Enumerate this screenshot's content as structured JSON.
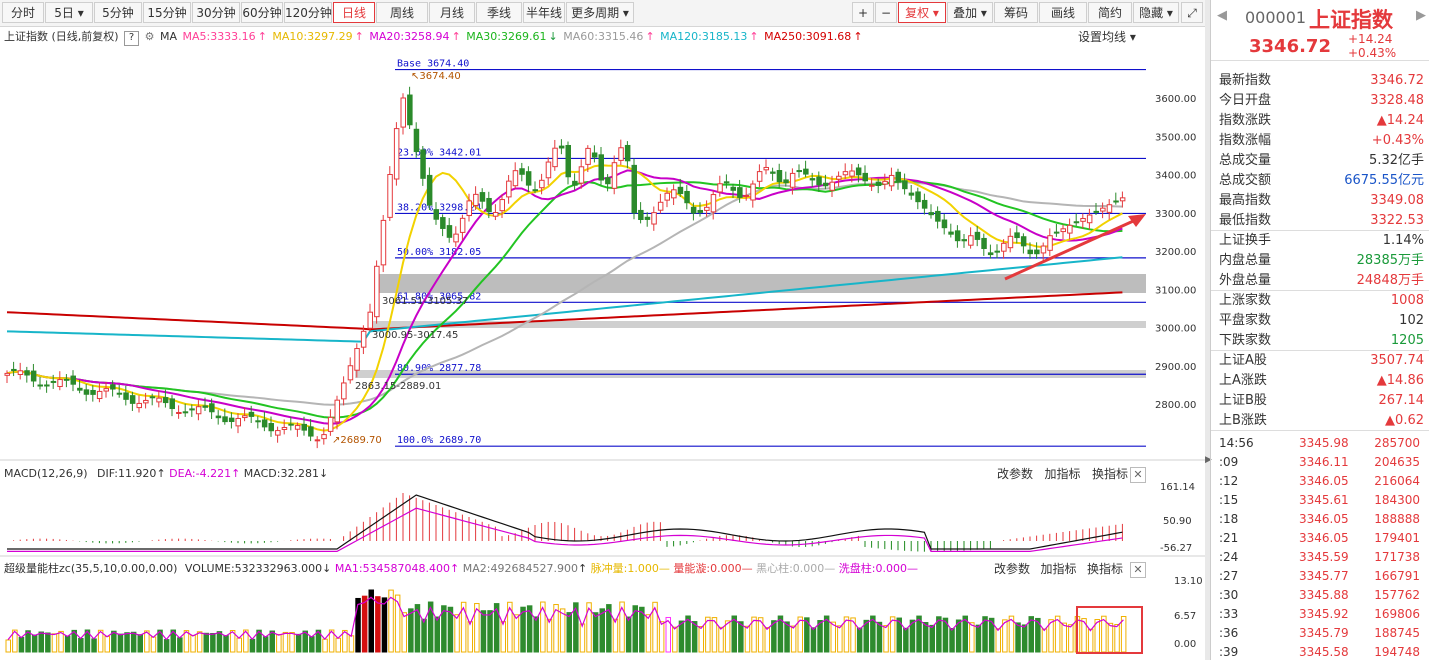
{
  "toolbar": {
    "periods": [
      "分时",
      "5日",
      "5分钟",
      "15分钟",
      "30分钟",
      "60分钟",
      "120分钟",
      "日线",
      "周线",
      "月线",
      "季线",
      "半年线",
      "更多周期"
    ],
    "active": "日线",
    "right_tools": [
      "+",
      "−",
      "复权",
      "叠加",
      "筹码",
      "画线",
      "简约",
      "隐藏"
    ],
    "fuquan_active": "复权"
  },
  "chart_header": {
    "title": "上证指数 (日线,前复权)",
    "ma_label": "MA",
    "ma5": "MA5:3333.16",
    "ma10": "MA10:3297.29",
    "ma20": "MA20:3258.94",
    "ma30": "MA30:3269.61",
    "ma60": "MA60:3315.46",
    "ma120": "MA120:3185.13",
    "ma250": "MA250:3091.68",
    "settings": "设置均线"
  },
  "price_axis": [
    "3600.00",
    "3500.00",
    "3400.00",
    "3300.00",
    "3200.00",
    "3100.00",
    "3000.00",
    "2900.00",
    "2800.00"
  ],
  "fib_labels": [
    "Base 3674.40",
    "23.60% 3442.01",
    "38.20% 3298.24",
    "50.00% 3182.05",
    "61.80% 3065.82",
    "80.90% 2877.78",
    "100.0% 2689.70"
  ],
  "annotations": {
    "high": "3674.40",
    "low": "2689.70",
    "gap1": "3000.95-3017.45",
    "gap2": "2863.15-2889.01",
    "gap3": "3061.51-3105.37"
  },
  "macd": {
    "title": "MACD(12,26,9)",
    "dif": "DIF:11.920",
    "dea": "DEA:-4.221",
    "macd": "MACD:32.281",
    "axis": [
      "161.14",
      "50.90",
      "-56.27"
    ]
  },
  "volume": {
    "title": "超级量能柱zc(35,5,10,0.00,0.00)",
    "vol": "VOLUME:532332963.000",
    "ma1": "MA1:534587048.400",
    "ma2": "MA2:492684527.900",
    "pulse": "脉冲量:1.000",
    "spin": "量能漩:0.000",
    "black": "黑心柱:0.000",
    "wash": "洗盘柱:0.000",
    "axis": [
      "13.10",
      "6.57",
      "0.00"
    ]
  },
  "panel_buttons": [
    "改参数",
    "加指标",
    "换指标"
  ],
  "quote": {
    "code": "000001",
    "name": "上证指数",
    "price": "3346.72",
    "change": "+14.24",
    "pct": "+0.43%"
  },
  "stats": [
    {
      "k": "最新指数",
      "v": "3346.72",
      "c": "red"
    },
    {
      "k": "今日开盘",
      "v": "3328.48",
      "c": "red"
    },
    {
      "k": "指数涨跌",
      "v": "▲14.24",
      "c": "red"
    },
    {
      "k": "指数涨幅",
      "v": "+0.43%",
      "c": "red"
    },
    {
      "k": "总成交量",
      "v": "5.32亿手",
      "c": "dark"
    },
    {
      "k": "总成交额",
      "v": "6675.55亿元",
      "c": "blue"
    },
    {
      "k": "最高指数",
      "v": "3349.08",
      "c": "red"
    },
    {
      "k": "最低指数",
      "v": "3322.53",
      "c": "red"
    },
    {
      "k": "上证换手",
      "v": "1.14%",
      "c": "dark"
    },
    {
      "k": "内盘总量",
      "v": "28385万手",
      "c": "green"
    },
    {
      "k": "外盘总量",
      "v": "24848万手",
      "c": "red"
    },
    {
      "k": "上涨家数",
      "v": "1008",
      "c": "red"
    },
    {
      "k": "平盘家数",
      "v": "102",
      "c": "dark"
    },
    {
      "k": "下跌家数",
      "v": "1205",
      "c": "green"
    },
    {
      "k": "上证A股",
      "v": "3507.74",
      "c": "red"
    },
    {
      "k": "上A涨跌",
      "v": "▲14.86",
      "c": "red"
    },
    {
      "k": "上证B股",
      "v": "267.14",
      "c": "red"
    },
    {
      "k": "上B涨跌",
      "v": "▲0.62",
      "c": "red"
    }
  ],
  "ticks": [
    {
      "t": "14:56",
      "p": "3345.98",
      "v": "285700"
    },
    {
      "t": ":09",
      "p": "3346.11",
      "v": "204635"
    },
    {
      "t": ":12",
      "p": "3346.05",
      "v": "216064"
    },
    {
      "t": ":15",
      "p": "3345.61",
      "v": "184300"
    },
    {
      "t": ":18",
      "p": "3346.05",
      "v": "188888"
    },
    {
      "t": ":21",
      "p": "3346.05",
      "v": "179401"
    },
    {
      "t": ":24",
      "p": "3345.59",
      "v": "171738"
    },
    {
      "t": ":27",
      "p": "3345.77",
      "v": "166791"
    },
    {
      "t": ":30",
      "p": "3345.88",
      "v": "157762"
    },
    {
      "t": ":33",
      "p": "3345.92",
      "v": "169806"
    },
    {
      "t": ":36",
      "p": "3345.79",
      "v": "188745"
    },
    {
      "t": ":39",
      "p": "3345.58",
      "v": "194748"
    }
  ]
}
